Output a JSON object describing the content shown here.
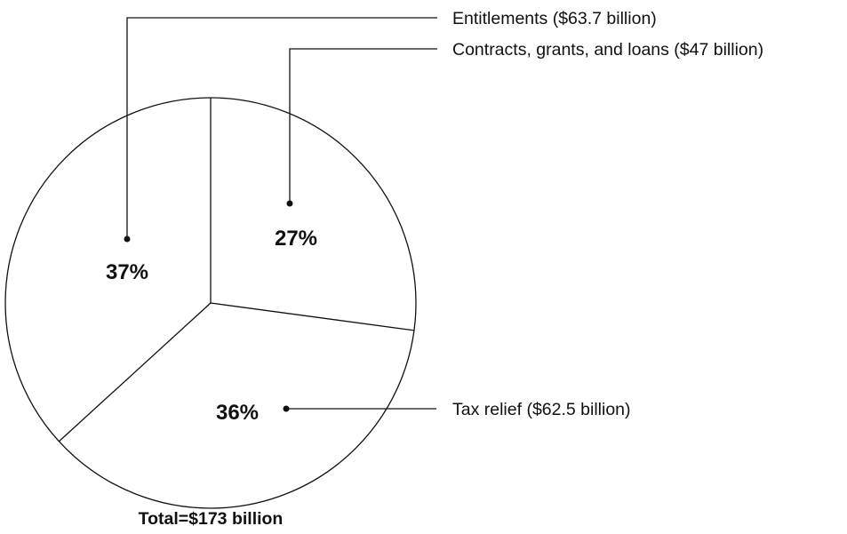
{
  "chart_data": {
    "type": "pie",
    "slices": [
      {
        "label": "Entitlements ($63.7 billion)",
        "value": 63.7,
        "percent_label": "37%"
      },
      {
        "label": "Contracts, grants, and loans ($47 billion)",
        "value": 47,
        "percent_label": "27%"
      },
      {
        "label": "Tax relief ($62.5 billion)",
        "value": 62.5,
        "percent_label": "36%"
      }
    ],
    "total_label": "Total=$173 billion",
    "colors": {
      "fill": "#ffffff",
      "stroke": "#111111"
    }
  }
}
